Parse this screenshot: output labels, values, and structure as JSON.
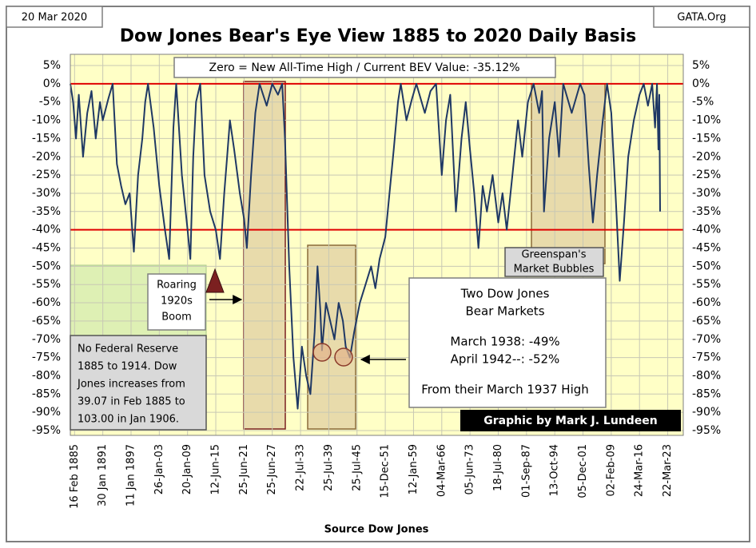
{
  "chart_data": {
    "type": "line",
    "title": "Dow Jones Bear's Eye View 1885 to 2020 Daily Basis",
    "date_label": "20 Mar 2020",
    "source_site": "GATA.Org",
    "x_title": "Source Dow Jones",
    "credit": "Graphic by Mark J. Lundeen",
    "color": "#1f3864",
    "grid": true,
    "xlim": [
      -0.15,
      21.55
    ],
    "ylim": [
      -95,
      5
    ],
    "xticks": [
      {
        "value": 0,
        "label": "16 Feb 1885"
      },
      {
        "value": 1,
        "label": "30 Jan 1891"
      },
      {
        "value": 2,
        "label": "11 Jan 1897"
      },
      {
        "value": 3,
        "label": "26-Jan-03"
      },
      {
        "value": 4,
        "label": "20-Jan-09"
      },
      {
        "value": 5,
        "label": "12-Jun-15"
      },
      {
        "value": 6,
        "label": "25-Jun-21"
      },
      {
        "value": 7,
        "label": "25-Jun-27"
      },
      {
        "value": 8,
        "label": "22-Jul-33"
      },
      {
        "value": 9,
        "label": "25-Jul-39"
      },
      {
        "value": 10,
        "label": "25-Jul-45"
      },
      {
        "value": 11,
        "label": "15-Dec-51"
      },
      {
        "value": 12,
        "label": "12-Jan-59"
      },
      {
        "value": 13,
        "label": "04-Mar-66"
      },
      {
        "value": 14,
        "label": "05-Jun-73"
      },
      {
        "value": 15,
        "label": "18-Jul-80"
      },
      {
        "value": 16,
        "label": "01-Sep-87"
      },
      {
        "value": 17,
        "label": "13-Oct-94"
      },
      {
        "value": 18,
        "label": "05-Dec-01"
      },
      {
        "value": 19,
        "label": "02-Feb-09"
      },
      {
        "value": 20,
        "label": "24-Mar-16"
      },
      {
        "value": 21,
        "label": "22-Mar-23"
      }
    ],
    "yticks": [
      {
        "value": 5,
        "label": "5%"
      },
      {
        "value": 0,
        "label": "0%"
      },
      {
        "value": -5,
        "label": "-5%"
      },
      {
        "value": -10,
        "label": "-10%"
      },
      {
        "value": -15,
        "label": "-15%"
      },
      {
        "value": -20,
        "label": "-20%"
      },
      {
        "value": -25,
        "label": "-25%"
      },
      {
        "value": -30,
        "label": "-30%"
      },
      {
        "value": -35,
        "label": "-35%"
      },
      {
        "value": -40,
        "label": "-40%"
      },
      {
        "value": -45,
        "label": "-45%"
      },
      {
        "value": -50,
        "label": "-50%"
      },
      {
        "value": -55,
        "label": "-55%"
      },
      {
        "value": -60,
        "label": "-60%"
      },
      {
        "value": -65,
        "label": "-65%"
      },
      {
        "value": -70,
        "label": "-70%"
      },
      {
        "value": -75,
        "label": "-75%"
      },
      {
        "value": -80,
        "label": "-80%"
      },
      {
        "value": -85,
        "label": "-85%"
      },
      {
        "value": -90,
        "label": "-90%"
      },
      {
        "value": -95,
        "label": "-95%"
      }
    ],
    "reference_lines": [
      {
        "value": 0,
        "color": "#e00000"
      },
      {
        "value": -40,
        "color": "#e00000"
      }
    ],
    "x": [
      -0.15,
      -0.05,
      0.05,
      0.15,
      0.3,
      0.45,
      0.6,
      0.75,
      0.9,
      1.0,
      1.2,
      1.35,
      1.5,
      1.65,
      1.8,
      1.95,
      2.1,
      2.25,
      2.4,
      2.5,
      2.6,
      2.8,
      3.0,
      3.2,
      3.35,
      3.5,
      3.6,
      3.8,
      4.0,
      4.1,
      4.2,
      4.3,
      4.45,
      4.6,
      4.8,
      5.0,
      5.15,
      5.3,
      5.4,
      5.5,
      5.65,
      5.85,
      6.0,
      6.1,
      6.25,
      6.4,
      6.55,
      6.8,
      7.0,
      7.2,
      7.35,
      7.45,
      7.6,
      7.75,
      7.9,
      8.05,
      8.2,
      8.35,
      8.5,
      8.6,
      8.7,
      8.76,
      8.9,
      9.05,
      9.2,
      9.35,
      9.5,
      9.6,
      9.75,
      9.9,
      10.1,
      10.3,
      10.5,
      10.65,
      10.8,
      11.0,
      11.15,
      11.3,
      11.45,
      11.55,
      11.75,
      11.95,
      12.1,
      12.4,
      12.6,
      12.8,
      13.0,
      13.15,
      13.3,
      13.5,
      13.7,
      13.85,
      14.0,
      14.15,
      14.3,
      14.45,
      14.6,
      14.8,
      15.0,
      15.15,
      15.3,
      15.5,
      15.7,
      15.85,
      16.05,
      16.25,
      16.45,
      16.55,
      16.62,
      16.8,
      17.0,
      17.15,
      17.3,
      17.6,
      17.9,
      18.05,
      18.2,
      18.35,
      18.5,
      18.7,
      18.85,
      19.0,
      19.15,
      19.3,
      19.45,
      19.6,
      19.8,
      20.0,
      20.15,
      20.3,
      20.45,
      20.55,
      20.62,
      20.67,
      20.7,
      20.73
    ],
    "values": [
      0,
      -5,
      -15,
      -3,
      -20,
      -8,
      -2,
      -15,
      -5,
      -10,
      -4,
      0,
      -22,
      -28,
      -33,
      -30,
      -46,
      -25,
      -15,
      -5,
      0,
      -12,
      -28,
      -40,
      -48,
      -12,
      0,
      -25,
      -40,
      -48,
      -20,
      -5,
      0,
      -25,
      -35,
      -40,
      -48,
      -30,
      -20,
      -10,
      -18,
      -30,
      -37,
      -45,
      -25,
      -8,
      0,
      -6,
      0,
      -3,
      0,
      -15,
      -50,
      -75,
      -89,
      -72,
      -80,
      -85,
      -68,
      -50,
      -62,
      -73,
      -60,
      -65,
      -70,
      -60,
      -65,
      -72,
      -75,
      -68,
      -60,
      -55,
      -50,
      -56,
      -48,
      -42,
      -30,
      -18,
      -5,
      0,
      -10,
      -4,
      0,
      -8,
      -2,
      0,
      -25,
      -10,
      -3,
      -35,
      -15,
      -5,
      -18,
      -30,
      -45,
      -28,
      -35,
      -25,
      -38,
      -30,
      -40,
      -25,
      -10,
      -20,
      -5,
      0,
      -8,
      -2,
      -35,
      -15,
      -5,
      -20,
      0,
      -8,
      0,
      -3,
      -22,
      -38,
      -25,
      -10,
      0,
      -8,
      -30,
      -54,
      -38,
      -20,
      -10,
      -3,
      0,
      -6,
      0,
      -12,
      0,
      -18,
      -3,
      -35
    ],
    "annotations": {
      "top_note": "Zero = New All-Time High / Current BEV Value: -35.12%",
      "roaring": [
        "Roaring",
        "1920s",
        "Boom"
      ],
      "no_fed": [
        "No Federal Reserve",
        "1885  to 1914.  Dow",
        "Jones increases from",
        "39.07  in Feb 1885  to",
        "103.00  in Jan 1906."
      ],
      "greenspan": [
        "Greenspan's",
        "Market Bubbles"
      ],
      "bear_markets": [
        "Two Dow Jones",
        "Bear Markets",
        "March 1938: -49%",
        "April 1942--: -52%",
        "From their March 1937 High"
      ]
    }
  }
}
